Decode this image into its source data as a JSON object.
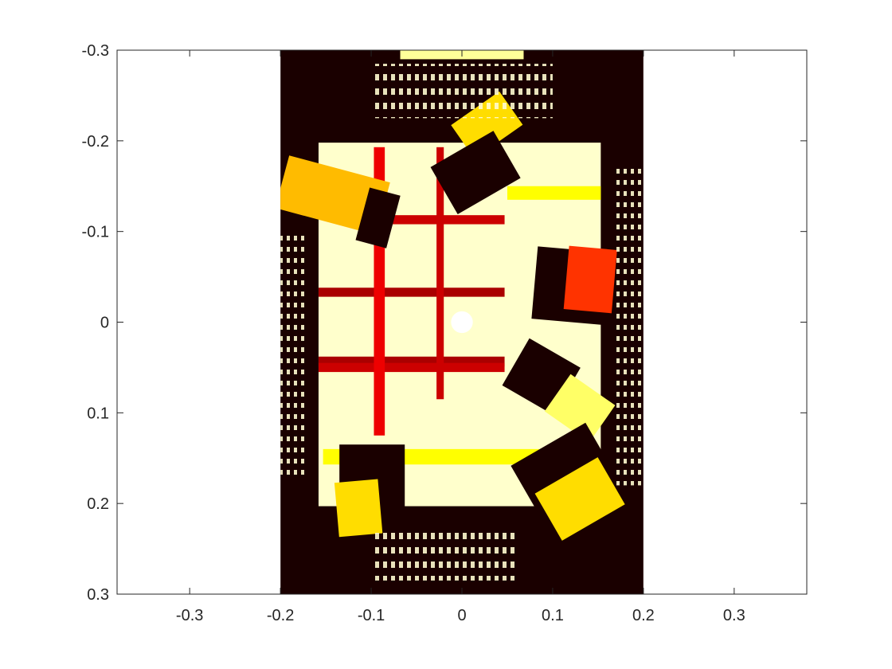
{
  "chart_data": {
    "type": "heatmap",
    "title": "",
    "xlabel": "",
    "ylabel": "",
    "xlim": [
      -0.38,
      0.38
    ],
    "ylim": [
      -0.3,
      0.3
    ],
    "y_reversed": true,
    "xticks": [
      -0.3,
      -0.2,
      -0.1,
      0,
      0.1,
      0.2,
      0.3
    ],
    "xtick_labels": [
      "-0.3",
      "-0.2",
      "-0.1",
      "0",
      "0.1",
      "0.2",
      "0.3"
    ],
    "yticks": [
      -0.3,
      -0.2,
      -0.1,
      0,
      0.1,
      0.2,
      0.3
    ],
    "ytick_labels": [
      "-0.3",
      "-0.2",
      "-0.1",
      "0",
      "0.1",
      "0.2",
      "0.3"
    ],
    "colormap": "hot",
    "image_extent": {
      "x": [
        -0.2,
        0.2
      ],
      "y": [
        -0.3,
        0.3
      ]
    },
    "background_color": "#1a0000",
    "grid": false,
    "regions": [
      {
        "kind": "tray",
        "x": [
          -0.158,
          0.153
        ],
        "y": [
          -0.198,
          0.203
        ],
        "level": 0.95
      },
      {
        "kind": "bright-band",
        "x": [
          0.05,
          0.153
        ],
        "y": [
          -0.15,
          -0.135
        ],
        "level": 0.75
      },
      {
        "kind": "bright-band",
        "x": [
          -0.153,
          0.153
        ],
        "y": [
          0.14,
          0.157
        ],
        "level": 0.75
      },
      {
        "kind": "grid-bar",
        "x": [
          -0.158,
          0.047
        ],
        "y": [
          0.038,
          0.049
        ],
        "level": 0.25
      },
      {
        "kind": "grid-bar",
        "x": [
          -0.158,
          0.047
        ],
        "y": [
          0.045,
          0.055
        ],
        "level": 0.3
      },
      {
        "kind": "grid-bar",
        "x": [
          -0.158,
          0.047
        ],
        "y": [
          -0.038,
          -0.028
        ],
        "level": 0.25
      },
      {
        "kind": "grid-bar",
        "x": [
          -0.118,
          0.047
        ],
        "y": [
          -0.118,
          -0.108
        ],
        "level": 0.3
      },
      {
        "kind": "grid-bar",
        "x": [
          -0.097,
          -0.085
        ],
        "y": [
          -0.193,
          0.125
        ],
        "level": 0.35
      },
      {
        "kind": "grid-bar",
        "x": [
          -0.028,
          -0.02
        ],
        "y": [
          -0.193,
          0.085
        ],
        "level": 0.3
      },
      {
        "kind": "bright-spot",
        "x": [
          -0.012,
          0.012
        ],
        "y": [
          -0.012,
          0.012
        ],
        "level": 1.0
      },
      {
        "kind": "top-strip",
        "x": [
          -0.068,
          0.068
        ],
        "y": [
          -0.3,
          -0.29
        ],
        "level": 0.9
      },
      {
        "kind": "block",
        "x": [
          -0.2,
          -0.085
        ],
        "y": [
          -0.17,
          -0.11
        ],
        "level": 0.65,
        "angle": 15
      },
      {
        "kind": "shadow",
        "x": [
          -0.11,
          -0.075
        ],
        "y": [
          -0.145,
          -0.085
        ],
        "level": 0.0,
        "angle": 15
      },
      {
        "kind": "block",
        "x": [
          -0.005,
          0.06
        ],
        "y": [
          -0.24,
          -0.195
        ],
        "level": 0.7,
        "angle": -35
      },
      {
        "kind": "shadow",
        "x": [
          -0.025,
          0.055
        ],
        "y": [
          -0.195,
          -0.135
        ],
        "level": 0.0,
        "angle": -30
      },
      {
        "kind": "shadow",
        "x": [
          0.08,
          0.165
        ],
        "y": [
          -0.08,
          0.0
        ],
        "level": 0.0,
        "angle": 5
      },
      {
        "kind": "block",
        "x": [
          0.115,
          0.168
        ],
        "y": [
          -0.082,
          -0.012
        ],
        "level": 0.45,
        "angle": 5
      },
      {
        "kind": "shadow",
        "x": [
          0.055,
          0.12
        ],
        "y": [
          0.03,
          0.09
        ],
        "level": 0.0,
        "angle": 30
      },
      {
        "kind": "block",
        "x": [
          0.1,
          0.16
        ],
        "y": [
          0.07,
          0.12
        ],
        "level": 0.85,
        "angle": 35
      },
      {
        "kind": "shadow",
        "x": [
          0.065,
          0.16
        ],
        "y": [
          0.13,
          0.2
        ],
        "level": 0.0,
        "angle": -30
      },
      {
        "kind": "block",
        "x": [
          0.09,
          0.17
        ],
        "y": [
          0.165,
          0.225
        ],
        "level": 0.7,
        "angle": -30
      },
      {
        "kind": "shadow",
        "x": [
          -0.135,
          -0.063
        ],
        "y": [
          0.135,
          0.205
        ],
        "level": 0.0,
        "angle": 0
      },
      {
        "kind": "block",
        "x": [
          -0.138,
          -0.09
        ],
        "y": [
          0.175,
          0.235
        ],
        "level": 0.7,
        "angle": -5
      }
    ]
  }
}
